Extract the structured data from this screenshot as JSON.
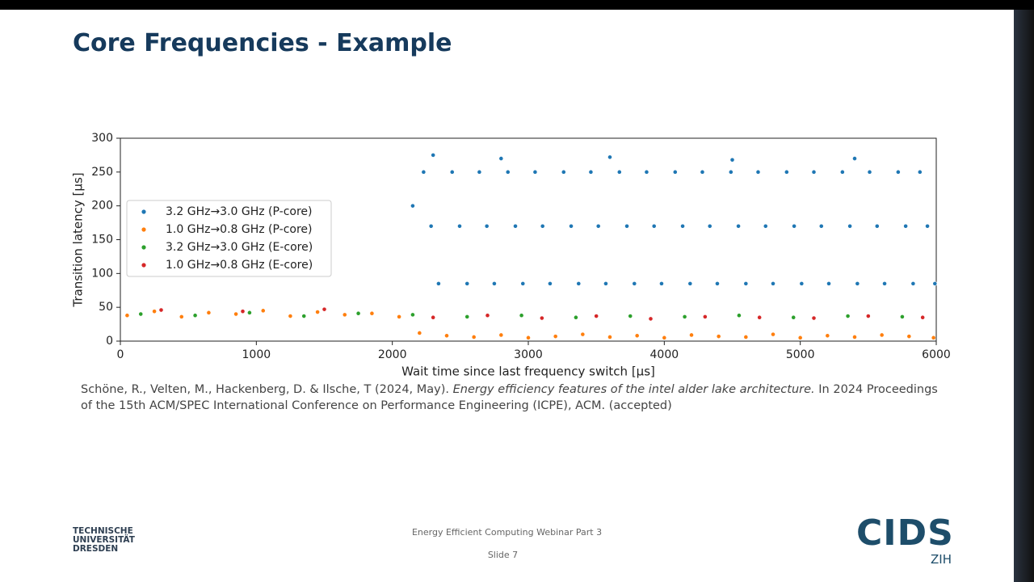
{
  "header": {
    "title": "Core Frequencies - Example"
  },
  "chart_data": {
    "type": "scatter",
    "xlabel": "Wait time since last frequency switch [µs]",
    "ylabel": "Transition latency [µs]",
    "xlim": [
      0,
      6000
    ],
    "xticks": [
      0,
      1000,
      2000,
      3000,
      4000,
      5000,
      6000
    ],
    "ylim": [
      0,
      300
    ],
    "yticks": [
      0,
      50,
      100,
      150,
      200,
      250,
      300
    ],
    "legend": "center-left",
    "series": [
      {
        "name": "3.2 GHz→3.0 GHz (P-core)",
        "color": "#1f77b4",
        "x": [
          2230,
          2285,
          2340,
          2440,
          2495,
          2550,
          2640,
          2695,
          2750,
          2850,
          2905,
          2960,
          3050,
          3105,
          3160,
          3260,
          3315,
          3370,
          3460,
          3515,
          3570,
          3670,
          3725,
          3780,
          3870,
          3925,
          3980,
          4080,
          4135,
          4190,
          4280,
          4335,
          4390,
          4490,
          4545,
          4600,
          4690,
          4745,
          4800,
          4900,
          4955,
          5010,
          5100,
          5155,
          5210,
          5310,
          5365,
          5420,
          5510,
          5565,
          5620,
          5720,
          5775,
          5830,
          5880,
          5935,
          5990,
          2300,
          2800,
          3600,
          4500,
          5400,
          2150
        ],
        "values": [
          250,
          170,
          85,
          250,
          170,
          85,
          250,
          170,
          85,
          250,
          170,
          85,
          250,
          170,
          85,
          250,
          170,
          85,
          250,
          170,
          85,
          250,
          170,
          85,
          250,
          170,
          85,
          250,
          170,
          85,
          250,
          170,
          85,
          250,
          170,
          85,
          250,
          170,
          85,
          250,
          170,
          85,
          250,
          170,
          85,
          250,
          170,
          85,
          250,
          170,
          85,
          250,
          170,
          85,
          250,
          170,
          85,
          275,
          270,
          272,
          268,
          270,
          200
        ]
      },
      {
        "name": "1.0 GHz→0.8 GHz (P-core)",
        "color": "#ff7f0e",
        "x": [
          50,
          250,
          450,
          650,
          850,
          1050,
          1250,
          1450,
          1650,
          1850,
          2050,
          2200,
          2400,
          2600,
          2800,
          3000,
          3200,
          3400,
          3600,
          3800,
          4000,
          4200,
          4400,
          4600,
          4800,
          5000,
          5200,
          5400,
          5600,
          5800,
          5980
        ],
        "values": [
          38,
          44,
          36,
          42,
          40,
          45,
          37,
          43,
          39,
          41,
          36,
          12,
          8,
          6,
          9,
          5,
          7,
          10,
          6,
          8,
          5,
          9,
          7,
          6,
          10,
          5,
          8,
          6,
          9,
          7,
          5
        ]
      },
      {
        "name": "3.2 GHz→3.0 GHz (E-core)",
        "color": "#2ca02c",
        "x": [
          150,
          550,
          950,
          1350,
          1750,
          2150,
          2550,
          2950,
          3350,
          3750,
          4150,
          4550,
          4950,
          5350,
          5750
        ],
        "values": [
          40,
          38,
          42,
          37,
          41,
          39,
          36,
          38,
          35,
          37,
          36,
          38,
          35,
          37,
          36
        ]
      },
      {
        "name": "1.0 GHz→0.8 GHz (E-core)",
        "color": "#d62728",
        "x": [
          300,
          900,
          1500,
          2300,
          2700,
          3100,
          3500,
          3900,
          4300,
          4700,
          5100,
          5500,
          5900
        ],
        "values": [
          46,
          44,
          47,
          35,
          38,
          34,
          37,
          33,
          36,
          35,
          34,
          37,
          35
        ]
      }
    ]
  },
  "citation": {
    "authors": "Schöne, R., Velten, M., Hackenberg, D. & Ilsche, T (2024, May).",
    "title": "Energy efficiency features of the intel alder lake architecture.",
    "venue": "In 2024 Proceedings of the 15th ACM/SPEC International Conference on Performance Engineering (ICPE), ACM. (accepted)"
  },
  "footer": {
    "event": "Energy Efficient Computing Webinar Part 3",
    "slide": "Slide 7",
    "university": "TECHNISCHE UNIVERSITÄT DRESDEN",
    "logo": "CIDS",
    "logo_sub": "ZIH"
  }
}
